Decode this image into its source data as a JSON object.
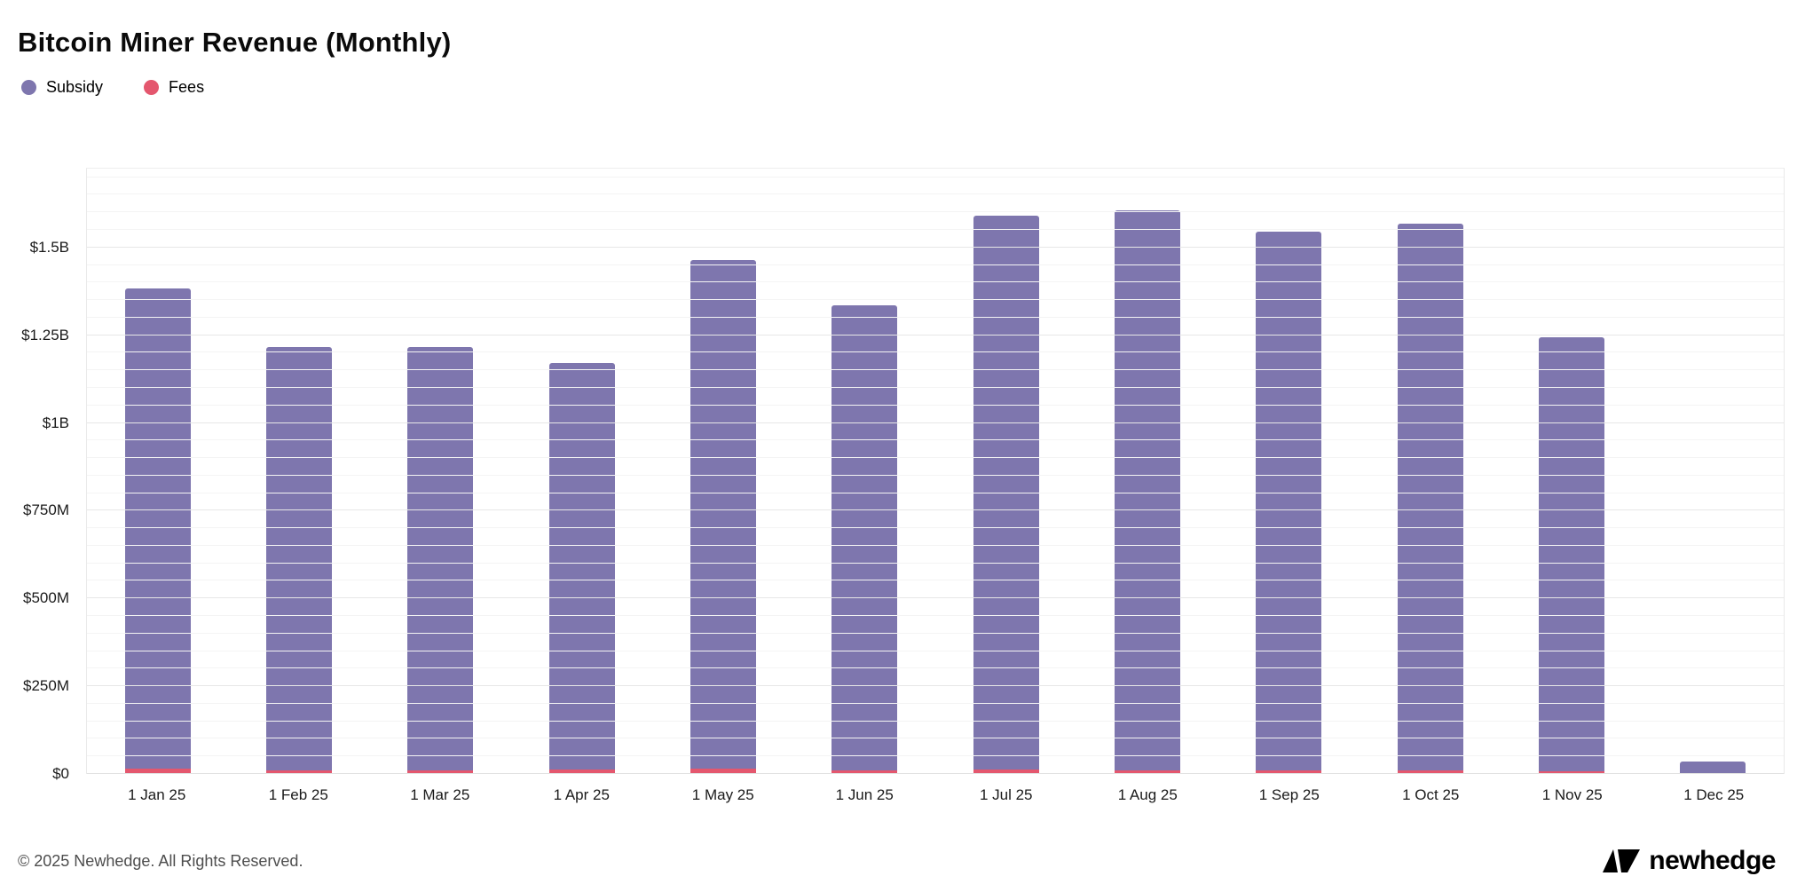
{
  "chart_data": {
    "type": "bar",
    "stacked": true,
    "title": "Bitcoin Miner Revenue (Monthly)",
    "categories": [
      "1 Jan 25",
      "1 Feb 25",
      "1 Mar 25",
      "1 Apr 25",
      "1 May 25",
      "1 Jun 25",
      "1 Jul 25",
      "1 Aug 25",
      "1 Sep 25",
      "1 Oct 25",
      "1 Nov 25",
      "1 Dec 25"
    ],
    "series": [
      {
        "name": "Fees",
        "color": "#e4576e",
        "unit": "USD millions",
        "values": [
          14,
          11,
          11,
          12,
          14,
          11,
          12,
          11,
          10,
          9,
          7,
          3
        ]
      },
      {
        "name": "Subsidy",
        "color": "#7e76ae",
        "unit": "USD millions",
        "values": [
          1370,
          1205,
          1205,
          1158,
          1450,
          1325,
          1578,
          1595,
          1535,
          1560,
          1238,
          32
        ]
      }
    ],
    "y_axis": {
      "unit": "USD",
      "ticks": [
        {
          "label": "$0",
          "value": 0
        },
        {
          "label": "$250M",
          "value": 250
        },
        {
          "label": "$500M",
          "value": 500
        },
        {
          "label": "$750M",
          "value": 750
        },
        {
          "label": "$1B",
          "value": 1000
        },
        {
          "label": "$1.25B",
          "value": 1250
        },
        {
          "label": "$1.5B",
          "value": 1500
        }
      ],
      "max_value": 1727,
      "minor_step": 50,
      "major_step": 250,
      "grid": true
    },
    "legend": [
      {
        "label": "Subsidy",
        "color": "#7e76ae"
      },
      {
        "label": "Fees",
        "color": "#e4576e"
      }
    ],
    "legend_position": "top-left"
  },
  "footer": {
    "copyright": "© 2025 Newhedge. All Rights Reserved.",
    "brand_name": "newhedge",
    "brand_mark": "newhedge-logo-icon"
  }
}
